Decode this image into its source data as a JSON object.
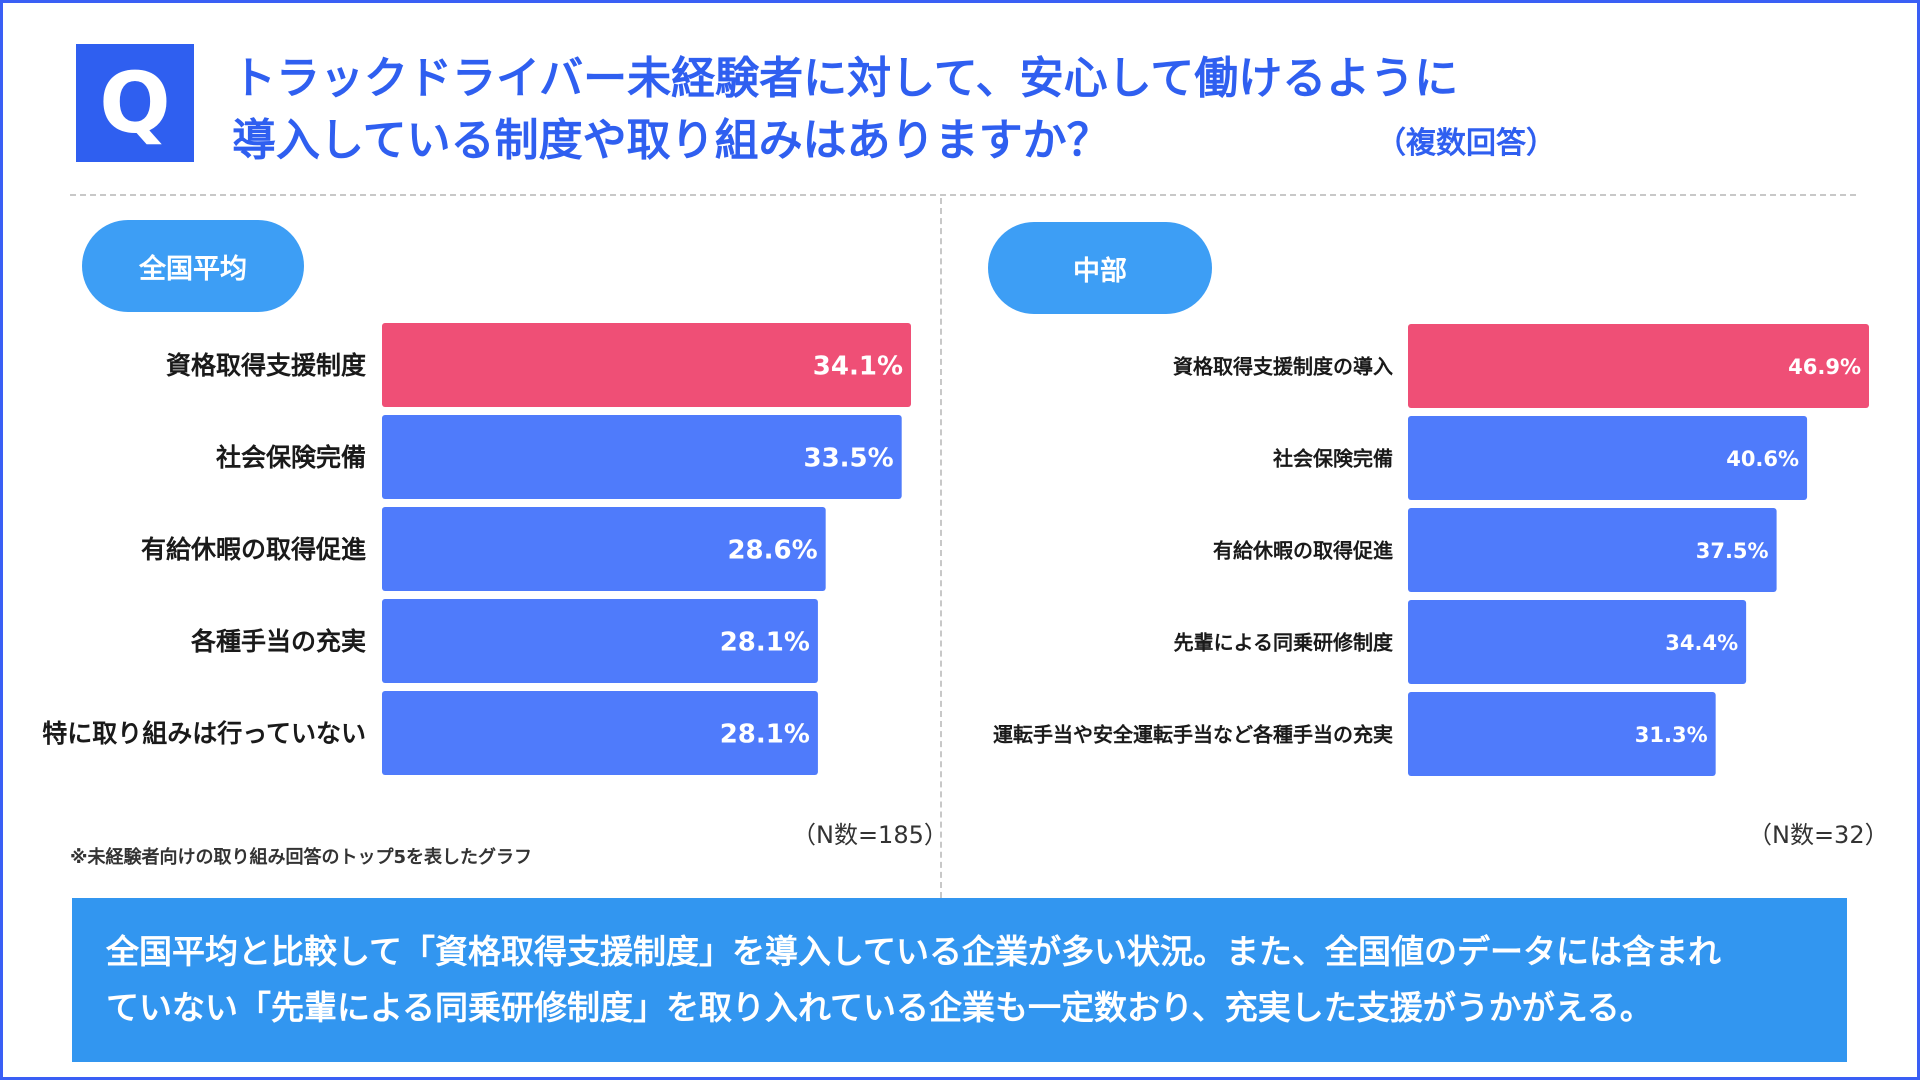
{
  "header": {
    "badge": "Q",
    "title_line1": "トラックドライバー未経験者に対して、安心して働けるように",
    "title_line2": "導入している制度や取り組みはありますか？",
    "note": "（複数回答）"
  },
  "colors": {
    "accent_blue": "#2f5ff0",
    "bar_blue": "#4f7bfb",
    "bar_pink": "#ef4f76",
    "pill_blue": "#3d9ef5",
    "summary_bg": "#3296f0"
  },
  "panels": {
    "left": {
      "label": "全国平均",
      "n": "（N数=185）"
    },
    "right": {
      "label": "中部",
      "n": "（N数=32）"
    }
  },
  "chart_data": [
    {
      "type": "bar",
      "orientation": "horizontal",
      "title": "全国平均",
      "categories": [
        "資格取得支援制度",
        "社会保険完備",
        "有給休暇の取得促進",
        "各種手当の充実",
        "特に取り組みは行っていない"
      ],
      "values": [
        34.1,
        33.5,
        28.6,
        28.1,
        28.1
      ],
      "labels": [
        "34.1%",
        "33.5%",
        "28.6%",
        "28.1%",
        "28.1%"
      ],
      "highlight_index": 0,
      "xlim": [
        0,
        34.1
      ]
    },
    {
      "type": "bar",
      "orientation": "horizontal",
      "title": "中部",
      "categories": [
        "資格取得支援制度の導入",
        "社会保険完備",
        "有給休暇の取得促進",
        "先輩による同乗研修制度",
        "運転手当や安全運転手当など各種手当の充実"
      ],
      "values": [
        46.9,
        40.6,
        37.5,
        34.4,
        31.3
      ],
      "labels": [
        "46.9%",
        "40.6%",
        "37.5%",
        "34.4%",
        "31.3%"
      ],
      "highlight_index": 0,
      "xlim": [
        0,
        46.9
      ]
    }
  ],
  "footnote": "※未経験者向けの取り組み回答のトップ5を表したグラフ",
  "summary": {
    "line1": "全国平均と比較して「資格取得支援制度」を導入している企業が多い状況。また、全国値のデータには含まれ",
    "line2": "ていない「先輩による同乗研修制度」を取り入れている企業も一定数おり、充実した支援がうかがえる。"
  }
}
